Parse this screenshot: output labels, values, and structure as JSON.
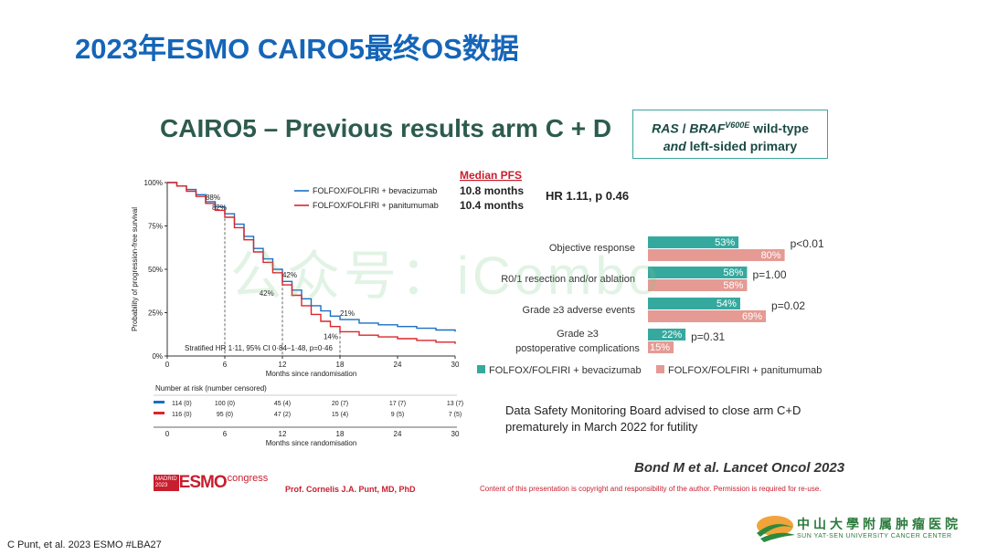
{
  "page_title": "2023年ESMO CAIRO5最终OS数据",
  "slide_heading": "CAIRO5 – Previous results arm C + D",
  "ras_box": {
    "line1_a": "RAS",
    "line1_b": " / ",
    "line1_c": "BRAF",
    "line1_sup": "V600E",
    "line1_d": " wild-type",
    "line2_a": "and",
    "line2_b": " left-sided primary"
  },
  "watermark": "公众号：iCombo",
  "credit": "C Punt, et al. 2023 ESMO #LBA27",
  "esmo_logo": {
    "madrid": "MADRID",
    "year": "2023",
    "esmo": "ESMO",
    "congress": "congress"
  },
  "presenter": "Prof. Cornelis J.A. Punt, MD, PhD",
  "copyright": "Content of this presentation is copyright and responsibility of the author. Permission is required for re-use.",
  "reference": "Bond M et al. Lancet Oncol 2023",
  "dsmb_note": "Data Safety Monitoring Board advised to close arm C+D prematurely in March 2022 for futility",
  "institution": {
    "cn": "中山大學附属肿瘤医院",
    "en": "SUN YAT-SEN UNIVERSITY CANCER CENTER"
  },
  "colors": {
    "title_blue": "#1565b8",
    "bev_blue": "#1a6fc2",
    "pan_red": "#d9262b",
    "bev_teal": "#36a99f",
    "pan_pink": "#e59a93"
  },
  "chart_data": [
    {
      "type": "line",
      "subtype": "kaplan-meier",
      "ylabel": "Probability of progression-free survival",
      "xlabel": "Months since randomisation",
      "xlim": [
        0,
        30
      ],
      "ylim": [
        0,
        100
      ],
      "x_ticks": [
        0,
        6,
        12,
        18,
        24,
        30
      ],
      "y_ticks": [
        "0%",
        "25%",
        "50%",
        "75%",
        "100%"
      ],
      "legend_placement": "top-right",
      "legend_title": "Median PFS",
      "hr_text": "HR 1.11, p 0.46",
      "stratified_text": "Stratified HR 1·11, 95% CI 0·84–1·48, p=0·46",
      "annotations": [
        {
          "x": 4,
          "y": 88,
          "text": "88%"
        },
        {
          "x": 6,
          "y": 82,
          "text": "82%"
        },
        {
          "x": 12,
          "y": 42,
          "text": "42%"
        },
        {
          "x": 11.5,
          "y": 40,
          "text": "42%"
        },
        {
          "x": 18,
          "y": 21,
          "text": "21%"
        },
        {
          "x": 18,
          "y": 14,
          "text": "14%"
        }
      ],
      "series": [
        {
          "name": "FOLFOX/FOLFIRI + bevacizumab",
          "median": "10.8 months",
          "color": "#1a6fc2",
          "x": [
            0,
            1,
            2,
            3,
            4,
            5,
            6,
            7,
            8,
            9,
            10,
            11,
            12,
            13,
            14,
            15,
            16,
            17,
            18,
            20,
            22,
            24,
            26,
            28,
            30
          ],
          "y": [
            100,
            98,
            96,
            93,
            89,
            86,
            82,
            76,
            69,
            62,
            56,
            50,
            43,
            38,
            33,
            29,
            26,
            23,
            21,
            19,
            18,
            17,
            16,
            15,
            14
          ]
        },
        {
          "name": "FOLFOX/FOLFIRI + panitumumab",
          "median": "10.4 months",
          "color": "#d9262b",
          "x": [
            0,
            1,
            2,
            3,
            4,
            5,
            6,
            7,
            8,
            9,
            10,
            11,
            12,
            13,
            14,
            15,
            16,
            17,
            18,
            20,
            22,
            24,
            26,
            28,
            30
          ],
          "y": [
            100,
            98,
            95,
            92,
            88,
            84,
            80,
            74,
            67,
            60,
            54,
            48,
            41,
            35,
            29,
            24,
            20,
            17,
            14,
            12,
            11,
            10,
            9,
            8,
            7
          ]
        }
      ],
      "risk_table": {
        "title": "Number at risk (number censored)",
        "x": [
          0,
          6,
          12,
          18,
          24,
          30
        ],
        "rows": [
          {
            "color": "#1a6fc2",
            "values": [
              "114 (0)",
              "100 (0)",
              "45 (4)",
              "20 (7)",
              "17 (7)",
              "13 (7)"
            ]
          },
          {
            "color": "#d9262b",
            "values": [
              "116 (0)",
              "95 (0)",
              "47 (2)",
              "15 (4)",
              "9 (5)",
              "7 (5)"
            ]
          }
        ]
      }
    },
    {
      "type": "bar",
      "orientation": "horizontal",
      "categories": [
        "Objective response",
        "R0/1 resection and/or ablation",
        "Grade ≥3 adverse events",
        "Grade ≥3 postoperative complications"
      ],
      "p_values": [
        "p<0.01",
        "p=1.00",
        "p=0.02",
        "p=0.31"
      ],
      "legend_placement": "bottom",
      "series": [
        {
          "name": "FOLFOX/FOLFIRI + bevacizumab",
          "color": "#36a99f",
          "values": [
            53,
            58,
            54,
            22
          ]
        },
        {
          "name": "FOLFOX/FOLFIRI + panitumumab",
          "color": "#e59a93",
          "values": [
            80,
            58,
            69,
            15
          ]
        }
      ]
    }
  ]
}
